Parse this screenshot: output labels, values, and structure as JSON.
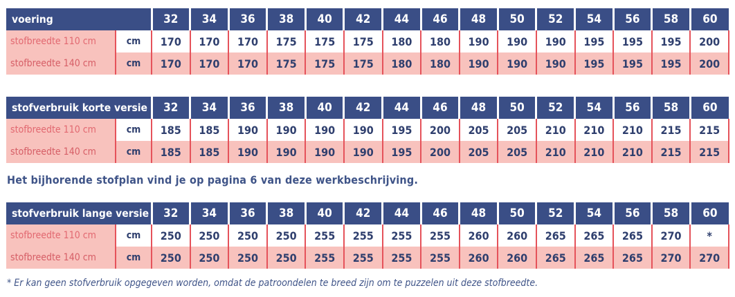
{
  "sizes": [
    "32",
    "34",
    "36",
    "38",
    "40",
    "42",
    "44",
    "46",
    "48",
    "50",
    "52",
    "54",
    "56",
    "58",
    "60"
  ],
  "tables": [
    {
      "title": "voering",
      "rows": [
        {
          "label": "stofbreedte 110 cm",
          "unit": "cm",
          "values": [
            "170",
            "170",
            "170",
            "175",
            "175",
            "175",
            "180",
            "180",
            "190",
            "190",
            "190",
            "195",
            "195",
            "195",
            "200"
          ]
        },
        {
          "label": "stofbreedte 140 cm",
          "unit": "cm",
          "values": [
            "170",
            "170",
            "170",
            "175",
            "175",
            "175",
            "180",
            "180",
            "190",
            "190",
            "190",
            "195",
            "195",
            "195",
            "200"
          ]
        }
      ]
    },
    {
      "title": "stofverbruik korte versie",
      "rows": [
        {
          "label": "stofbreedte 110 cm",
          "unit": "cm",
          "values": [
            "185",
            "185",
            "190",
            "190",
            "190",
            "190",
            "195",
            "200",
            "205",
            "205",
            "210",
            "210",
            "210",
            "215",
            "215"
          ]
        },
        {
          "label": "stofbreedte 140 cm",
          "unit": "cm",
          "values": [
            "185",
            "185",
            "190",
            "190",
            "190",
            "190",
            "195",
            "200",
            "205",
            "205",
            "210",
            "210",
            "210",
            "215",
            "215"
          ]
        }
      ]
    },
    {
      "title": "stofverbruik lange versie",
      "rows": [
        {
          "label": "stofbreedte 110 cm",
          "unit": "cm",
          "values": [
            "250",
            "250",
            "250",
            "250",
            "255",
            "255",
            "255",
            "255",
            "260",
            "260",
            "265",
            "265",
            "265",
            "270",
            "*"
          ]
        },
        {
          "label": "stofbreedte 140 cm",
          "unit": "cm",
          "values": [
            "250",
            "250",
            "250",
            "250",
            "255",
            "255",
            "255",
            "255",
            "260",
            "260",
            "265",
            "265",
            "265",
            "270",
            "270"
          ]
        }
      ]
    }
  ],
  "note": "Het bijhorende stofplan vind je op pagina 6 van deze werkbeschrijving.",
  "footnote": "* Er kan geen stofverbruik opgegeven worden, omdat de patroondelen te breed zijn om te puzzelen uit deze stofbreedte.",
  "colors": {
    "header": "#3a4e86",
    "pink": "#f8c2bd",
    "red_line": "#e5525a",
    "text": "#2f3f6e"
  }
}
